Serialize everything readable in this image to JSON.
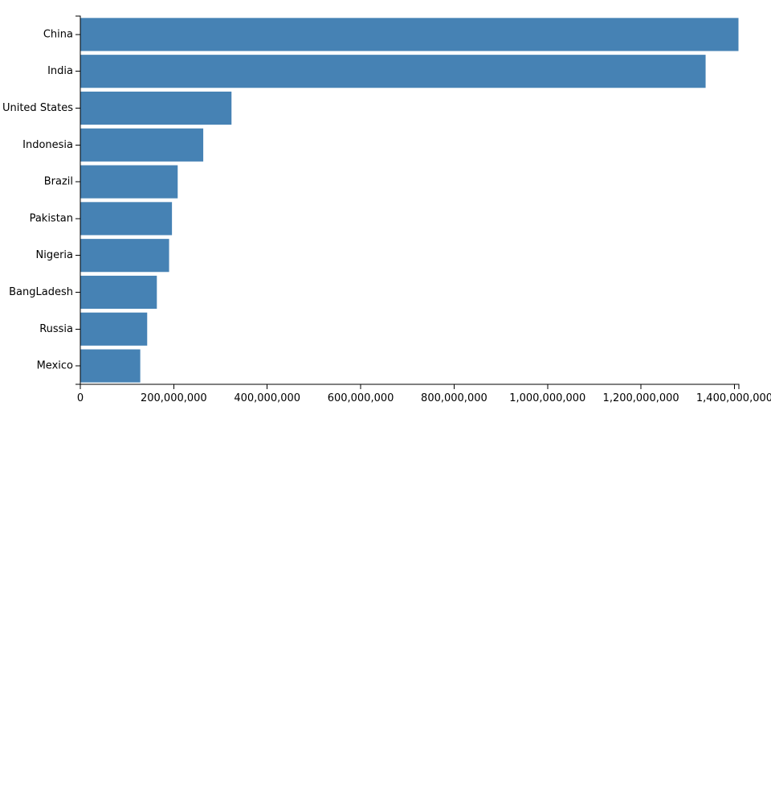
{
  "chart_data": {
    "type": "bar",
    "orientation": "horizontal",
    "categories": [
      "China",
      "India",
      "United States",
      "Indonesia",
      "Brazil",
      "Pakistan",
      "Nigeria",
      "BangLadesh",
      "Russia",
      "Mexico"
    ],
    "values": [
      1409517397,
      1339180127,
      324459463,
      263991379,
      209288278,
      197015955,
      190886311,
      164669751,
      143989754,
      129163276
    ],
    "xlim": [
      0,
      1409517397
    ],
    "xticks": [
      0,
      200000000,
      400000000,
      600000000,
      800000000,
      1000000000,
      1200000000,
      1400000000
    ],
    "xtick_labels": [
      "0",
      "200,000,000",
      "400,000,000",
      "600,000,000",
      "800,000,000",
      "1,000,000,000",
      "1,200,000,000",
      "1,400,000,000"
    ],
    "bar_color": "#4682b4",
    "grid": false,
    "title": "",
    "xlabel": "",
    "ylabel": ""
  }
}
